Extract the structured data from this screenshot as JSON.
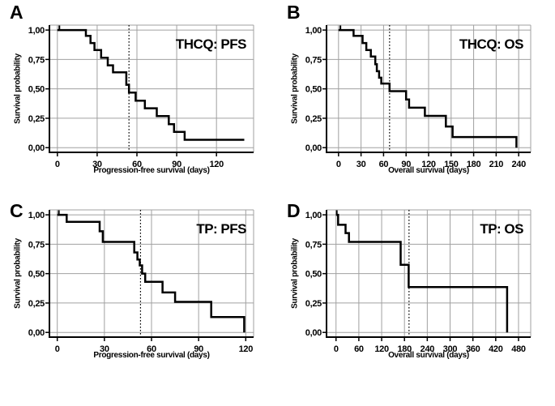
{
  "styles": {
    "background": "#ffffff",
    "curve_color": "#000000",
    "grid_color": "#a0a0a0",
    "axis_color": "#000000",
    "median_line_color": "#000000",
    "text_color": "#000000"
  },
  "chart_data": [
    {
      "panel": "A",
      "type": "line",
      "subtype": "kaplan_meier_step",
      "title": "THCQ: PFS",
      "xlabel": "Progression-free survival (days)",
      "ylabel": "Survival probability",
      "xticks": [
        0,
        30,
        60,
        90,
        120
      ],
      "ytick_values": [
        0,
        0.25,
        0.5,
        0.75,
        1
      ],
      "ytick_labels": [
        "0,00",
        "0,25",
        "0,50",
        "0,75",
        "1,00"
      ],
      "xlim": [
        -6,
        148
      ],
      "ylim": [
        -0.04,
        1.042
      ],
      "grid": true,
      "median_line_x": 54,
      "censor_tick_x": 1.5,
      "steps": [
        [
          0,
          1
        ],
        [
          21.5,
          0.95
        ],
        [
          25,
          0.89
        ],
        [
          28,
          0.83
        ],
        [
          33,
          0.765
        ],
        [
          38,
          0.7
        ],
        [
          42,
          0.64
        ],
        [
          52,
          0.535
        ],
        [
          54,
          0.468
        ],
        [
          59,
          0.4
        ],
        [
          66,
          0.335
        ],
        [
          75,
          0.268
        ],
        [
          84,
          0.2
        ],
        [
          88,
          0.134
        ],
        [
          96,
          0.067
        ],
        [
          141,
          0.067
        ]
      ]
    },
    {
      "panel": "B",
      "type": "line",
      "subtype": "kaplan_meier_step",
      "title": "THCQ: OS",
      "xlabel": "Overall survival (days)",
      "ylabel": "Survival probability",
      "xticks": [
        0,
        30,
        60,
        90,
        120,
        150,
        180,
        210,
        240
      ],
      "ytick_values": [
        0,
        0.25,
        0.5,
        0.75,
        1
      ],
      "ytick_labels": [
        "0,00",
        "0,25",
        "0,50",
        "0,75",
        "1,00"
      ],
      "xlim": [
        -16,
        256
      ],
      "ylim": [
        -0.04,
        1.042
      ],
      "grid": true,
      "median_line_x": 68,
      "censor_tick_x": 2.5,
      "steps": [
        [
          0,
          1
        ],
        [
          20,
          0.95
        ],
        [
          32,
          0.89
        ],
        [
          37,
          0.83
        ],
        [
          43,
          0.775
        ],
        [
          49,
          0.71
        ],
        [
          51,
          0.65
        ],
        [
          54,
          0.595
        ],
        [
          57,
          0.545
        ],
        [
          68,
          0.48
        ],
        [
          90,
          0.41
        ],
        [
          94,
          0.34
        ],
        [
          115,
          0.27
        ],
        [
          143,
          0.18
        ],
        [
          152,
          0.09
        ],
        [
          237,
          0
        ]
      ]
    },
    {
      "panel": "C",
      "type": "line",
      "subtype": "kaplan_meier_step",
      "title": "TP: PFS",
      "xlabel": "Progression-free survival (days)",
      "ylabel": "Survival probability",
      "xticks": [
        0,
        30,
        60,
        90,
        120
      ],
      "ytick_values": [
        0,
        0.25,
        0.5,
        0.75,
        1
      ],
      "ytick_labels": [
        "0,00",
        "0,25",
        "0,50",
        "0,75",
        "1,00"
      ],
      "xlim": [
        -5,
        125
      ],
      "ylim": [
        -0.04,
        1.042
      ],
      "grid": true,
      "median_line_x": 53,
      "censor_tick_x": 1,
      "steps": [
        [
          0,
          1
        ],
        [
          6,
          0.94
        ],
        [
          27,
          0.86
        ],
        [
          29,
          0.77
        ],
        [
          49,
          0.68
        ],
        [
          51,
          0.62
        ],
        [
          52.5,
          0.57
        ],
        [
          54,
          0.5
        ],
        [
          56,
          0.43
        ],
        [
          67,
          0.34
        ],
        [
          75,
          0.26
        ],
        [
          98,
          0.13
        ],
        [
          119,
          0
        ]
      ]
    },
    {
      "panel": "D",
      "type": "line",
      "subtype": "kaplan_meier_step",
      "title": "TP: OS",
      "xlabel": "Overall survival (days)",
      "ylabel": "Survival probability",
      "xticks": [
        0,
        60,
        120,
        180,
        240,
        300,
        360,
        420,
        480
      ],
      "ytick_values": [
        0,
        0.25,
        0.5,
        0.75,
        1
      ],
      "ytick_labels": [
        "0,00",
        "0,25",
        "0,50",
        "0,75",
        "1,00"
      ],
      "xlim": [
        -25,
        512
      ],
      "ylim": [
        -0.04,
        1.042
      ],
      "grid": true,
      "median_line_x": 192,
      "censor_tick_x": 2,
      "steps": [
        [
          0,
          1
        ],
        [
          5.5,
          0.915
        ],
        [
          25,
          0.845
        ],
        [
          34,
          0.77
        ],
        [
          170,
          0.575
        ],
        [
          191,
          0.385
        ],
        [
          450,
          0
        ]
      ]
    }
  ]
}
